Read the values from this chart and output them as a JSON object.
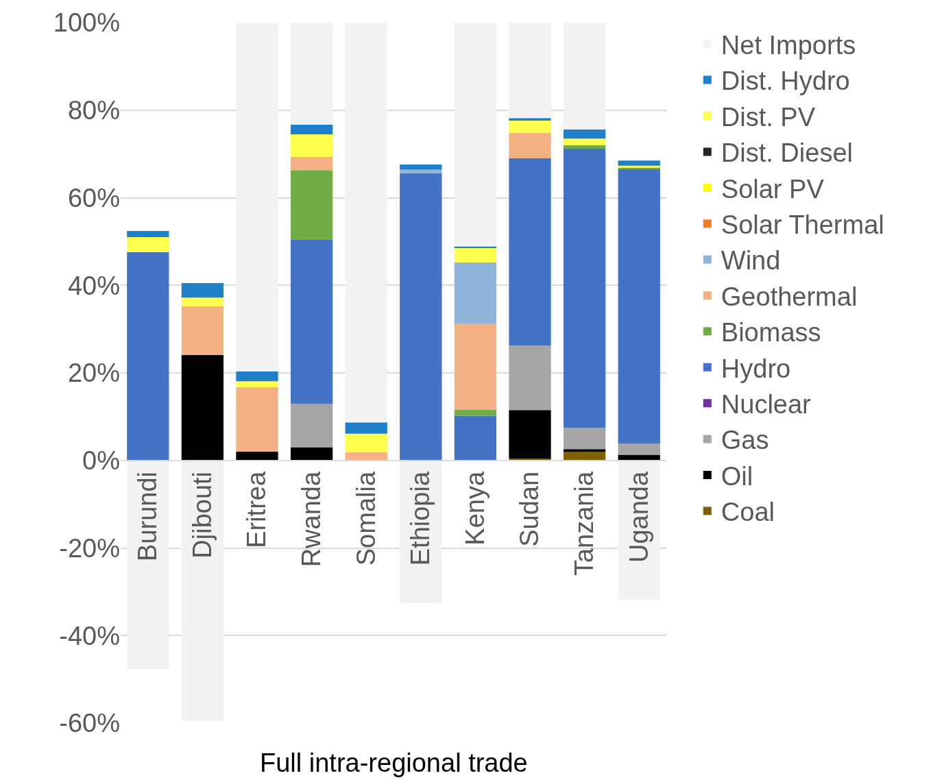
{
  "chart_data": {
    "type": "bar",
    "stacked": true,
    "xlabel": "Full intra-regional trade",
    "categories": [
      "Burundi",
      "Djibouti",
      "Eritrea",
      "Rwanda",
      "Somalia",
      "Ethiopia",
      "Kenya",
      "Sudan",
      "Tanzania",
      "Uganda"
    ],
    "series": [
      {
        "name": "Coal",
        "color": "#7f6000",
        "values": [
          0,
          0,
          0,
          0,
          0,
          0,
          0,
          0.4,
          2.0,
          0
        ]
      },
      {
        "name": "Oil",
        "color": "#000000",
        "values": [
          0,
          24.1,
          2.0,
          3.0,
          0,
          0,
          0,
          11.1,
          0.6,
          1.3
        ]
      },
      {
        "name": "Gas",
        "color": "#a5a5a5",
        "values": [
          0,
          0,
          0,
          9.9,
          0,
          0,
          0,
          14.7,
          4.8,
          2.5
        ]
      },
      {
        "name": "Nuclear",
        "color": "#7030a0",
        "values": [
          0,
          0,
          0,
          0,
          0,
          0,
          0,
          0,
          0,
          0
        ]
      },
      {
        "name": "Hydro",
        "color": "#4472c4",
        "values": [
          47.6,
          0,
          0,
          37.6,
          0,
          65.6,
          10.2,
          42.8,
          63.8,
          62.8
        ]
      },
      {
        "name": "Biomass",
        "color": "#70ad47",
        "values": [
          0,
          0,
          0,
          15.8,
          0,
          0,
          1.4,
          0,
          0.8,
          0.3
        ]
      },
      {
        "name": "Geothermal",
        "color": "#f4b183",
        "values": [
          0,
          11.1,
          14.7,
          3.0,
          1.9,
          0,
          19.6,
          5.8,
          0,
          0
        ]
      },
      {
        "name": "Wind",
        "color": "#8fb4dc",
        "values": [
          0,
          0,
          0,
          0,
          0,
          0.8,
          14.0,
          0,
          0,
          0
        ]
      },
      {
        "name": "Solar Thermal",
        "color": "#ed7d31",
        "values": [
          0,
          0,
          0,
          0,
          0,
          0,
          0,
          0,
          0,
          0
        ]
      },
      {
        "name": "Solar PV",
        "color": "#ffff00",
        "values": [
          0,
          0,
          0,
          0,
          0,
          0,
          0,
          0,
          0,
          0
        ]
      },
      {
        "name": "Dist. Diesel",
        "color": "#262626",
        "values": [
          0,
          0,
          0,
          0,
          0,
          0,
          0,
          0,
          0,
          0
        ]
      },
      {
        "name": "Dist. PV",
        "color": "#ffff4d",
        "values": [
          3.4,
          2.0,
          1.4,
          5.2,
          4.2,
          0,
          3.3,
          2.8,
          1.5,
          0.4
        ]
      },
      {
        "name": "Dist. Hydro",
        "color": "#1f7fc8",
        "values": [
          1.4,
          3.3,
          2.2,
          2.2,
          2.6,
          1.2,
          0.4,
          0.6,
          2.1,
          1.2
        ]
      },
      {
        "name": "Net Imports",
        "color": "#f2f2f2",
        "values": [
          -47.6,
          -59.5,
          79.6,
          23.3,
          91.3,
          -32.6,
          51.1,
          21.9,
          24.4,
          -31.8
        ]
      }
    ],
    "ylim": [
      -60,
      100
    ],
    "yticks": [
      {
        "value": -60,
        "label": "-60%"
      },
      {
        "value": -40,
        "label": "-40%"
      },
      {
        "value": -20,
        "label": "-20%"
      },
      {
        "value": 0,
        "label": "0%"
      },
      {
        "value": 20,
        "label": "20%"
      },
      {
        "value": 40,
        "label": "40%"
      },
      {
        "value": 60,
        "label": "60%"
      },
      {
        "value": 80,
        "label": "80%"
      },
      {
        "value": 100,
        "label": "100%"
      }
    ],
    "grid": "y",
    "legend": "right"
  }
}
